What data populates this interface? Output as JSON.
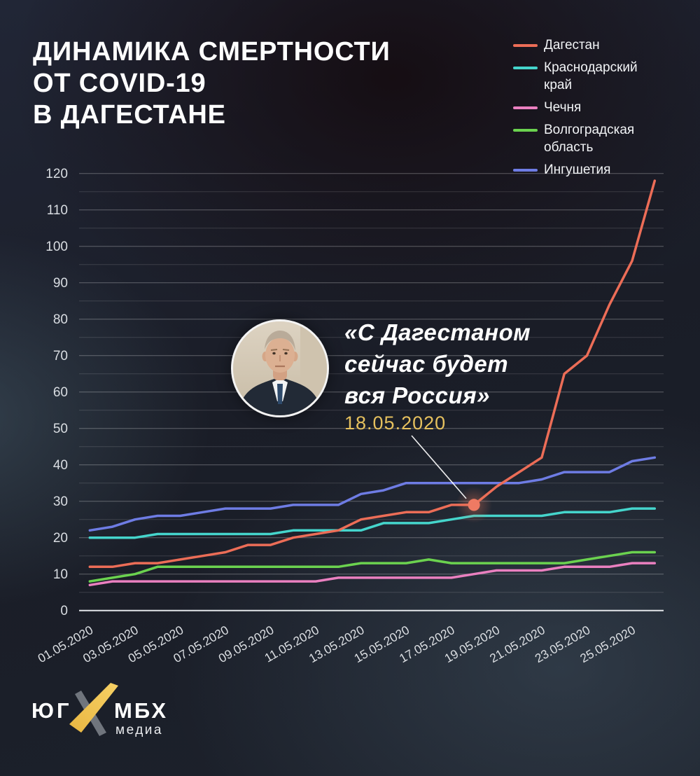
{
  "title": {
    "line1": "ДИНАМИКА СМЕРТНОСТИ",
    "line2": "ОТ COVID-19",
    "line3": "В ДАГЕСТАНЕ"
  },
  "colors": {
    "dagestan": "#ec6d57",
    "krasnodar": "#45d5cc",
    "chechnya": "#ea80c0",
    "volgograd": "#6bd24f",
    "ingushetia": "#6e7ce4",
    "annotation_date": "#e5c05e",
    "marker": "#ee7a63"
  },
  "legend": [
    {
      "label": "Дагестан",
      "color": "#ec6d57"
    },
    {
      "label": "Краснодарский край",
      "color": "#45d5cc"
    },
    {
      "label": "Чечня",
      "color": "#ea80c0"
    },
    {
      "label": "Волгоградская область",
      "color": "#6bd24f"
    },
    {
      "label": "Ингушетия",
      "color": "#6e7ce4"
    }
  ],
  "annotation": {
    "quote_line1": "«С Дагестаном",
    "quote_line2": "сейчас будет",
    "quote_line3": "вся Россия»",
    "date": "18.05.2020",
    "marker_day_index": 17,
    "marker_value": 29
  },
  "logo": {
    "left": "ЮГ",
    "right": "МБХ",
    "sub": "медиа"
  },
  "chart_data": {
    "type": "line",
    "ylim": [
      0,
      120
    ],
    "y_tick_step": 10,
    "grid_step": 5,
    "grid": "on",
    "legend_position": "top-right",
    "x_tick_labels": [
      "01.05.2020",
      "03.05.2020",
      "05.05.2020",
      "07.05.2020",
      "09.05.2020",
      "11.05.2020",
      "13.05.2020",
      "15.05.2020",
      "17.05.2020",
      "19.05.2020",
      "21.05.2020",
      "23.05.2020",
      "25.05.2020"
    ],
    "x_days_total": 26,
    "series": [
      {
        "name": "Ингушетия",
        "color": "#6e7ce4",
        "values": [
          22,
          23,
          25,
          26,
          26,
          27,
          28,
          28,
          28,
          29,
          29,
          29,
          32,
          33,
          35,
          35,
          35,
          35,
          35,
          35,
          36,
          38,
          38,
          38,
          41,
          42
        ]
      },
      {
        "name": "Краснодарский край",
        "color": "#45d5cc",
        "values": [
          20,
          20,
          20,
          21,
          21,
          21,
          21,
          21,
          21,
          22,
          22,
          22,
          22,
          24,
          24,
          24,
          25,
          26,
          26,
          26,
          26,
          27,
          27,
          27,
          28,
          28
        ]
      },
      {
        "name": "Волгоградская область",
        "color": "#6bd24f",
        "values": [
          8,
          9,
          10,
          12,
          12,
          12,
          12,
          12,
          12,
          12,
          12,
          12,
          13,
          13,
          13,
          14,
          13,
          13,
          13,
          13,
          13,
          13,
          14,
          15,
          16,
          16
        ]
      },
      {
        "name": "Чечня",
        "color": "#ea80c0",
        "values": [
          7,
          8,
          8,
          8,
          8,
          8,
          8,
          8,
          8,
          8,
          8,
          9,
          9,
          9,
          9,
          9,
          9,
          10,
          11,
          11,
          11,
          12,
          12,
          12,
          13,
          13
        ]
      },
      {
        "name": "Дагестан",
        "color": "#ec6d57",
        "values": [
          12,
          12,
          13,
          13,
          14,
          15,
          16,
          18,
          18,
          20,
          21,
          22,
          25,
          26,
          27,
          27,
          29,
          29,
          34,
          38,
          42,
          65,
          70,
          84,
          96,
          118
        ]
      }
    ]
  }
}
